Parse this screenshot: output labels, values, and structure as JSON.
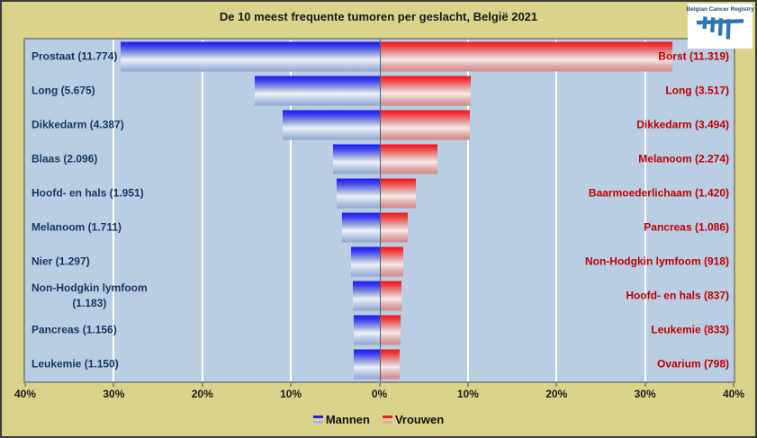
{
  "title": "De 10 meest frequente tumoren per geslacht, België 2021",
  "logo": {
    "text": "Belgian Cancer Registry",
    "icon": "tally-marks-icon",
    "color": "#2e75b6"
  },
  "legend": {
    "items": [
      {
        "label": "Mannen",
        "color": "#2121dd"
      },
      {
        "label": "Vrouwen",
        "color": "#e32222"
      }
    ]
  },
  "x_axis": {
    "tick_labels": [
      "40%",
      "30%",
      "20%",
      "10%",
      "0%",
      "10%",
      "20%",
      "30%",
      "40%"
    ],
    "unit": "%"
  },
  "colors": {
    "background": "#d9d489",
    "plot_background": "#b9cde3",
    "men_bar": "#1c1cf0",
    "women_bar": "#f31212",
    "men_label": "#17375e",
    "women_label": "#c00000"
  },
  "chart_data": {
    "type": "bar",
    "subtype": "diverging-horizontal-pyramid",
    "title": "De 10 meest frequente tumoren per geslacht, België 2021",
    "legend_position": "bottom",
    "grid": true,
    "x_range_pct": [
      -40,
      40
    ],
    "series": [
      {
        "name": "Mannen",
        "side": "left",
        "color": "blue"
      },
      {
        "name": "Vrouwen",
        "side": "right",
        "color": "red"
      }
    ],
    "rows": [
      {
        "men_label": "Prostaat (11.774)",
        "men_value": 11774,
        "men_pct": 29.2,
        "women_label": "Borst (11.319)",
        "women_value": 11319,
        "women_pct": 33.1
      },
      {
        "men_label": "Long (5.675)",
        "men_value": 5675,
        "men_pct": 14.1,
        "women_label": "Long (3.517)",
        "women_value": 3517,
        "women_pct": 10.3
      },
      {
        "men_label": "Dikkedarm (4.387)",
        "men_value": 4387,
        "men_pct": 10.9,
        "women_label": "Dikkedarm (3.494)",
        "women_value": 3494,
        "women_pct": 10.2
      },
      {
        "men_label": "Blaas (2.096)",
        "men_value": 2096,
        "men_pct": 5.2,
        "women_label": "Melanoom (2.274)",
        "women_value": 2274,
        "women_pct": 6.6
      },
      {
        "men_label": "Hoofd- en hals (1.951)",
        "men_value": 1951,
        "men_pct": 4.8,
        "women_label": "Baarmoederlichaam (1.420)",
        "women_value": 1420,
        "women_pct": 4.15
      },
      {
        "men_label": "Melanoom (1.711)",
        "men_value": 1711,
        "men_pct": 4.25,
        "women_label": "Pancreas (1.086)",
        "women_value": 1086,
        "women_pct": 3.2
      },
      {
        "men_label": "Nier (1.297)",
        "men_value": 1297,
        "men_pct": 3.2,
        "women_label": "Non-Hodgkin lymfoom (918)",
        "women_value": 918,
        "women_pct": 2.7
      },
      {
        "men_label": "Non-Hodgkin lymfoom\n(1.183)",
        "men_value": 1183,
        "men_pct": 2.95,
        "women_label": "Hoofd- en hals (837)",
        "women_value": 837,
        "women_pct": 2.45
      },
      {
        "men_label": "Pancreas (1.156)",
        "men_value": 1156,
        "men_pct": 2.9,
        "women_label": "Leukemie (833)",
        "women_value": 833,
        "women_pct": 2.43
      },
      {
        "men_label": "Leukemie (1.150)",
        "men_value": 1150,
        "men_pct": 2.85,
        "women_label": "Ovarium (798)",
        "women_value": 798,
        "women_pct": 2.33
      }
    ]
  }
}
